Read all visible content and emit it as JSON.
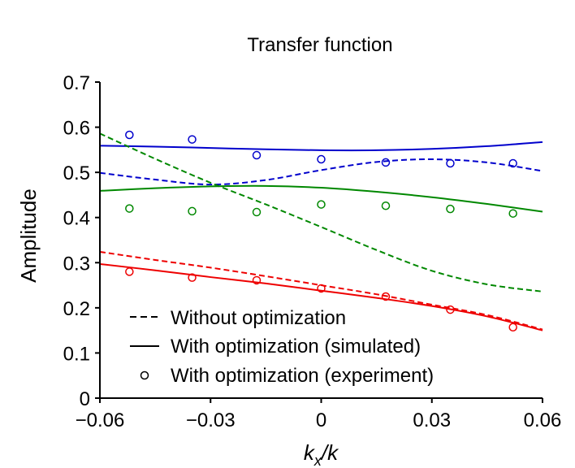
{
  "chart_data": {
    "type": "line",
    "title": "Transfer function",
    "xlabel_main": "k",
    "xlabel_sub": "x",
    "xlabel_rest": "/k",
    "ylabel": "Amplitude",
    "xlim": [
      -0.06,
      0.06
    ],
    "ylim": [
      0,
      0.7
    ],
    "x_ticks": [
      {
        "value": -0.06,
        "label": "−0.06"
      },
      {
        "value": -0.03,
        "label": "−0.03"
      },
      {
        "value": 0,
        "label": "0"
      },
      {
        "value": 0.03,
        "label": "0.03"
      },
      {
        "value": 0.06,
        "label": "0.06"
      }
    ],
    "y_ticks": [
      {
        "value": 0,
        "label": "0"
      },
      {
        "value": 0.1,
        "label": "0.1"
      },
      {
        "value": 0.2,
        "label": "0.2"
      },
      {
        "value": 0.3,
        "label": "0.3"
      },
      {
        "value": 0.4,
        "label": "0.4"
      },
      {
        "value": 0.5,
        "label": "0.5"
      },
      {
        "value": 0.6,
        "label": "0.6"
      },
      {
        "value": 0.7,
        "label": "0.7"
      }
    ],
    "legend": {
      "placement": "bottom-left",
      "entries": [
        {
          "label": "Without optimization",
          "style": "dashed"
        },
        {
          "label": "With optimization (simulated)",
          "style": "solid"
        },
        {
          "label": "With optimization (experiment)",
          "style": "marker"
        }
      ]
    },
    "curves": [
      {
        "color": "#0000cc",
        "style": "solid",
        "x": [
          -0.06,
          -0.045,
          -0.03,
          -0.015,
          0,
          0.015,
          0.03,
          0.045,
          0.06
        ],
        "y": [
          0.559,
          0.557,
          0.554,
          0.551,
          0.549,
          0.549,
          0.552,
          0.558,
          0.567
        ]
      },
      {
        "color": "#0000cc",
        "style": "dashed",
        "x": [
          -0.06,
          -0.045,
          -0.03,
          -0.015,
          0,
          0.015,
          0.03,
          0.045,
          0.06
        ],
        "y": [
          0.499,
          0.484,
          0.473,
          0.483,
          0.505,
          0.523,
          0.529,
          0.522,
          0.503
        ]
      },
      {
        "color": "#008800",
        "style": "solid",
        "x": [
          -0.06,
          -0.045,
          -0.03,
          -0.015,
          0,
          0.015,
          0.03,
          0.045,
          0.06
        ],
        "y": [
          0.459,
          0.465,
          0.469,
          0.47,
          0.466,
          0.457,
          0.445,
          0.43,
          0.413
        ]
      },
      {
        "color": "#008800",
        "style": "dashed",
        "x": [
          -0.06,
          -0.045,
          -0.03,
          -0.015,
          0,
          0.015,
          0.03,
          0.045,
          0.06
        ],
        "y": [
          0.586,
          0.53,
          0.477,
          0.429,
          0.379,
          0.328,
          0.282,
          0.252,
          0.236
        ]
      },
      {
        "color": "#ee0000",
        "style": "solid",
        "x": [
          -0.06,
          -0.045,
          -0.03,
          -0.015,
          0,
          0.015,
          0.03,
          0.045,
          0.06
        ],
        "y": [
          0.297,
          0.283,
          0.268,
          0.254,
          0.238,
          0.222,
          0.204,
          0.181,
          0.15
        ]
      },
      {
        "color": "#ee0000",
        "style": "dashed",
        "x": [
          -0.06,
          -0.045,
          -0.03,
          -0.015,
          0,
          0.015,
          0.03,
          0.045,
          0.06
        ],
        "y": [
          0.324,
          0.306,
          0.289,
          0.27,
          0.25,
          0.23,
          0.207,
          0.184,
          0.152
        ]
      }
    ],
    "markers": [
      {
        "color": "#0000cc",
        "x": [
          -0.052,
          -0.035,
          -0.0175,
          0,
          0.0175,
          0.035,
          0.052
        ],
        "y": [
          0.583,
          0.573,
          0.538,
          0.529,
          0.522,
          0.52,
          0.52
        ]
      },
      {
        "color": "#008800",
        "x": [
          -0.052,
          -0.035,
          -0.0175,
          0,
          0.0175,
          0.035,
          0.052
        ],
        "y": [
          0.42,
          0.414,
          0.412,
          0.429,
          0.426,
          0.419,
          0.409
        ]
      },
      {
        "color": "#ee0000",
        "x": [
          -0.052,
          -0.035,
          -0.0175,
          0,
          0.0175,
          0.035,
          0.052
        ],
        "y": [
          0.28,
          0.267,
          0.261,
          0.243,
          0.225,
          0.196,
          0.157
        ]
      }
    ]
  }
}
